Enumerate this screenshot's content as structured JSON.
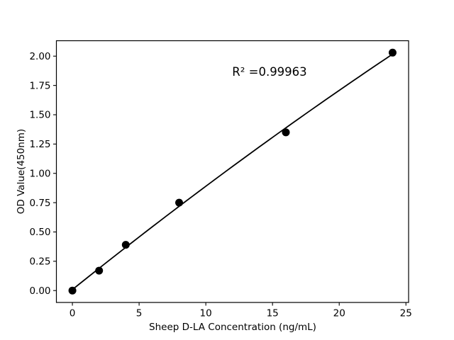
{
  "chart_data": {
    "type": "scatter",
    "title": "",
    "xlabel": "Sheep D-LA Concentration (ng/mL)",
    "ylabel": "OD Value(450nm)",
    "annotation": "R² =0.99963",
    "r_squared": 0.99963,
    "x": [
      0,
      2,
      4,
      8,
      16,
      24
    ],
    "y": [
      0.0,
      0.17,
      0.39,
      0.75,
      1.35,
      2.03
    ],
    "fit_curve": {
      "type": "quadratic",
      "a": 0.0085,
      "b": 0.09133,
      "c": -0.000318,
      "x_start": 0,
      "x_end": 24
    },
    "xtick_values": [
      0,
      5,
      10,
      15,
      20,
      25
    ],
    "xtick_labels": [
      "0",
      "5",
      "10",
      "15",
      "20",
      "25"
    ],
    "ytick_values": [
      0.0,
      0.25,
      0.5,
      0.75,
      1.0,
      1.25,
      1.5,
      1.75,
      2.0
    ],
    "ytick_labels": [
      "0.00",
      "0.25",
      "0.50",
      "0.75",
      "1.00",
      "1.25",
      "1.50",
      "1.75",
      "2.00"
    ],
    "xlim": [
      -1.2,
      25.2
    ],
    "ylim": [
      -0.1015,
      2.1315
    ],
    "grid": false,
    "legend": "none",
    "marker_color": "#000000",
    "line_color": "#000000",
    "axes_color": "#000000",
    "background_color": "#ffffff",
    "marker_radius_px": 5.5
  }
}
